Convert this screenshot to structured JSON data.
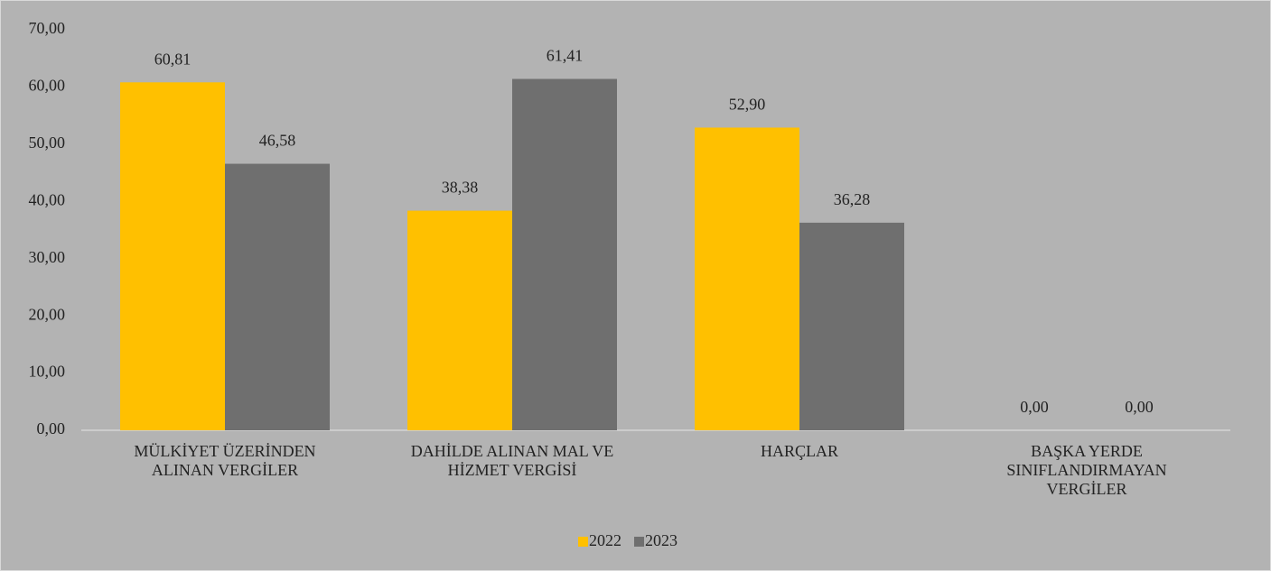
{
  "chart_data": {
    "type": "bar",
    "categories": [
      "MÜLKİYET ÜZERİNDEN ALINAN VERGİLER",
      "DAHİLDE ALINAN MAL VE HİZMET VERGİSİ",
      "HARÇLAR",
      "BAŞKA YERDE SINIFLANDIRMAYAN VERGİLER"
    ],
    "series": [
      {
        "name": "2022",
        "color": "#ffc000",
        "values": [
          60.81,
          38.38,
          52.9,
          0
        ],
        "value_labels": [
          "60,81",
          "38,38",
          "52,90",
          "0,00"
        ]
      },
      {
        "name": "2023",
        "color": "#6f6f6f",
        "values": [
          46.58,
          61.41,
          36.28,
          0
        ],
        "value_labels": [
          "46,58",
          "61,41",
          "36,28",
          "0,00"
        ]
      }
    ],
    "ylim": [
      0,
      70
    ],
    "yticks": [
      {
        "value": 0,
        "label": "0,00"
      },
      {
        "value": 10,
        "label": "10,00"
      },
      {
        "value": 20,
        "label": "20,00"
      },
      {
        "value": 30,
        "label": "30,00"
      },
      {
        "value": 40,
        "label": "40,00"
      },
      {
        "value": 50,
        "label": "50,00"
      },
      {
        "value": 60,
        "label": "60,00"
      },
      {
        "value": 70,
        "label": "70,00"
      }
    ],
    "grid": false,
    "legend": "bottom"
  }
}
